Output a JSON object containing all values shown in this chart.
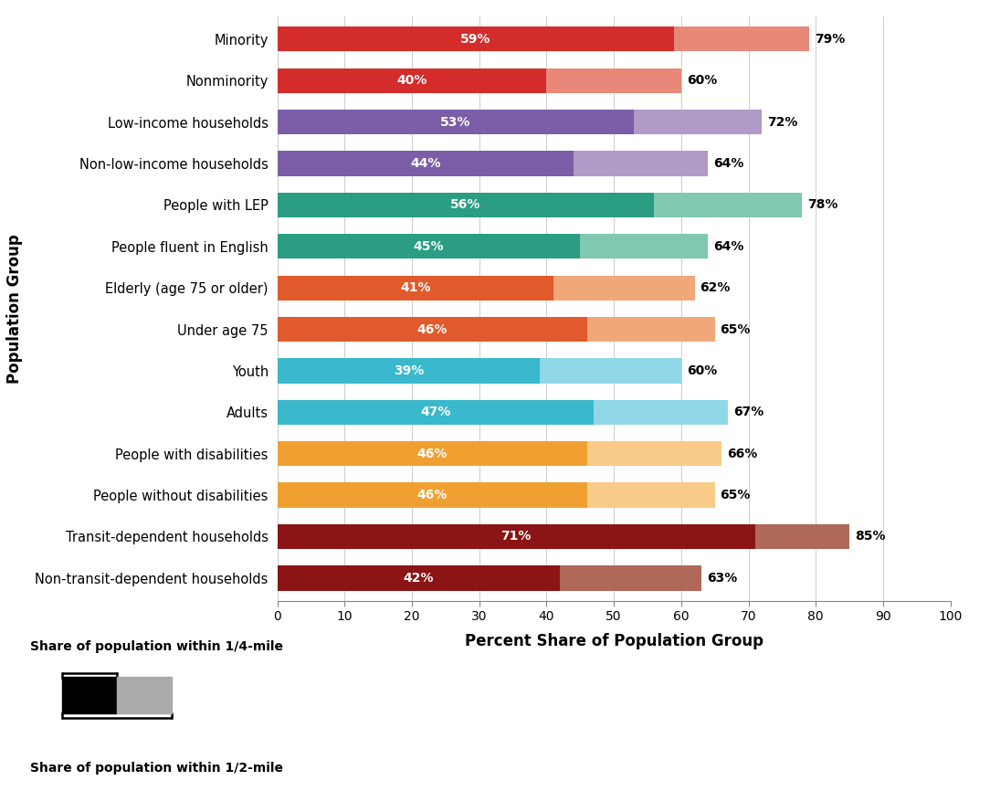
{
  "categories": [
    "Minority",
    "Nonminority",
    "Low-income households",
    "Non-low-income households",
    "People with LEP",
    "People fluent in English",
    "Elderly (age 75 or older)",
    "Under age 75",
    "Youth",
    "Adults",
    "People with disabilities",
    "People without disabilities",
    "Transit-dependent households",
    "Non-transit-dependent households"
  ],
  "quarter_mile": [
    59,
    40,
    53,
    44,
    56,
    45,
    41,
    46,
    39,
    47,
    46,
    46,
    71,
    42
  ],
  "half_mile": [
    79,
    60,
    72,
    64,
    78,
    64,
    62,
    65,
    60,
    67,
    66,
    65,
    85,
    63
  ],
  "colors_dark": [
    "#d42b2b",
    "#d42b2b",
    "#7b5ea7",
    "#7b5ea7",
    "#2a9d82",
    "#2a9d82",
    "#e05a2b",
    "#e05a2b",
    "#3ab8cc",
    "#3ab8cc",
    "#f0a030",
    "#f0a030",
    "#8b1414",
    "#8b1414"
  ],
  "colors_light": [
    "#e88878",
    "#e88878",
    "#b09ac8",
    "#b09ac8",
    "#80c8b0",
    "#80c8b0",
    "#f0a878",
    "#f0a878",
    "#90d8e8",
    "#90d8e8",
    "#f8cc88",
    "#f8cc88",
    "#b06858",
    "#b06858"
  ],
  "xlabel": "Percent Share of Population Group",
  "ylabel": "Population Group",
  "xlim": [
    0,
    100
  ],
  "xticks": [
    0,
    10,
    20,
    30,
    40,
    50,
    60,
    70,
    80,
    90,
    100
  ],
  "legend_label_top": "Share of population within 1/4-mile",
  "legend_label_bottom": "Share of population within 1/2-mile",
  "bar_height": 0.6
}
